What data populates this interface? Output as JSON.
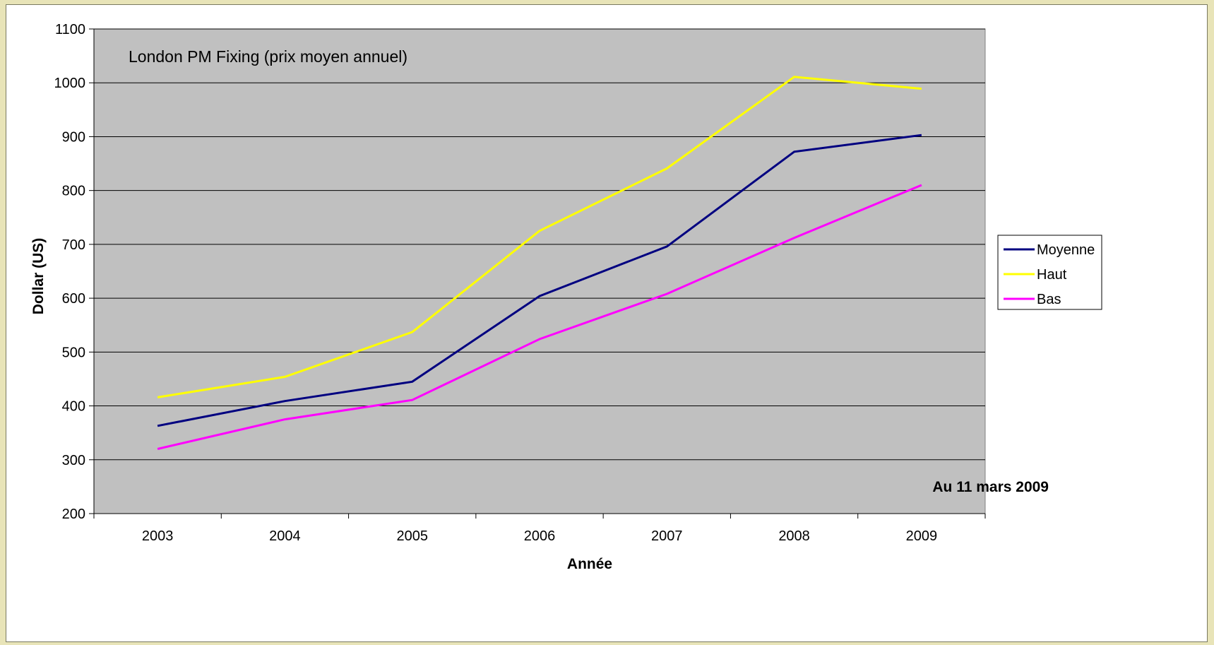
{
  "chart_data": {
    "type": "line",
    "title": "London PM Fixing (prix moyen annuel)",
    "annotation": "Au 11 mars 2009",
    "xlabel": "Année",
    "ylabel": "Dollar (US)",
    "categories": [
      "2003",
      "2004",
      "2005",
      "2006",
      "2007",
      "2008",
      "2009"
    ],
    "ylim": [
      200,
      1100
    ],
    "yticks": [
      200,
      300,
      400,
      500,
      600,
      700,
      800,
      900,
      1000,
      1100
    ],
    "grid": true,
    "legend_position": "right",
    "plot_background": "#c0c0c0",
    "series": [
      {
        "name": "Moyenne",
        "color": "#000080",
        "values": [
          363,
          409,
          445,
          604,
          696,
          872,
          903
        ]
      },
      {
        "name": "Haut",
        "color": "#ffff00",
        "values": [
          416,
          454,
          537,
          725,
          841,
          1011,
          989
        ]
      },
      {
        "name": "Bas",
        "color": "#ff00ff",
        "values": [
          320,
          375,
          411,
          524,
          608,
          712,
          810
        ]
      }
    ]
  }
}
